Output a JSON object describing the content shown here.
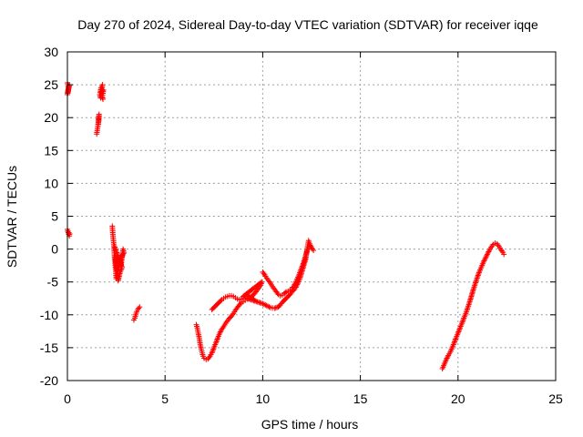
{
  "chart_data": {
    "type": "scatter",
    "title": "Day 270 of 2024, Sidereal Day-to-day VTEC variation (SDTVAR) for receiver iqqe",
    "xlabel": "GPS time / hours",
    "ylabel": "SDTVAR / TECUs",
    "xlim": [
      0,
      25
    ],
    "ylim": [
      -20,
      30
    ],
    "xticks": [
      0,
      5,
      10,
      15,
      20,
      25
    ],
    "yticks": [
      -20,
      -15,
      -10,
      -5,
      0,
      5,
      10,
      15,
      20,
      25,
      30
    ],
    "grid": true,
    "marker": "+",
    "color": "#ff0000",
    "series": [
      {
        "name": "SDTVAR",
        "segments": [
          [
            [
              0.0,
              25.3
            ],
            [
              0.05,
              24.5
            ],
            [
              0.02,
              23.8
            ],
            [
              0.1,
              25.0
            ],
            [
              0.0,
              23.5
            ],
            [
              0.08,
              24.8
            ]
          ],
          [
            [
              0.0,
              3.0
            ],
            [
              0.05,
              2.5
            ],
            [
              0.1,
              2.0
            ],
            [
              0.02,
              2.7
            ],
            [
              0.12,
              2.3
            ]
          ],
          [
            [
              1.5,
              17.5
            ],
            [
              1.55,
              18.5
            ],
            [
              1.6,
              19.5
            ],
            [
              1.62,
              20.5
            ],
            [
              1.58,
              19.0
            ]
          ],
          [
            [
              1.65,
              23.5
            ],
            [
              1.7,
              23.0
            ],
            [
              1.75,
              24.0
            ],
            [
              1.8,
              25.0
            ],
            [
              1.72,
              24.5
            ],
            [
              1.68,
              23.8
            ],
            [
              1.85,
              24.2
            ],
            [
              1.78,
              23.2
            ],
            [
              1.82,
              22.8
            ]
          ],
          [
            [
              2.3,
              3.5
            ],
            [
              2.32,
              2.5
            ],
            [
              2.35,
              1.5
            ],
            [
              2.38,
              0.5
            ],
            [
              2.4,
              -0.5
            ],
            [
              2.42,
              -1.5
            ],
            [
              2.45,
              -2.5
            ],
            [
              2.48,
              -3.5
            ],
            [
              2.5,
              -4.5
            ],
            [
              2.55,
              -4.0
            ],
            [
              2.6,
              -3.0
            ],
            [
              2.65,
              -2.0
            ],
            [
              2.7,
              -1.5
            ],
            [
              2.75,
              -2.5
            ],
            [
              2.8,
              -1.0
            ],
            [
              2.85,
              0.0
            ],
            [
              2.9,
              -0.5
            ],
            [
              2.5,
              -3.0
            ],
            [
              2.45,
              -1.0
            ],
            [
              2.6,
              -4.8
            ],
            [
              2.7,
              -3.5
            ],
            [
              2.8,
              -2.8
            ],
            [
              2.4,
              0.5
            ]
          ],
          [
            [
              3.4,
              -10.8
            ],
            [
              3.45,
              -10.5
            ],
            [
              3.5,
              -10.0
            ],
            [
              3.55,
              -9.5
            ],
            [
              3.6,
              -9.2
            ],
            [
              3.65,
              -9.0
            ],
            [
              3.7,
              -8.8
            ]
          ],
          [
            [
              6.6,
              -11.5
            ],
            [
              6.65,
              -12.0
            ],
            [
              6.7,
              -12.8
            ],
            [
              6.75,
              -13.5
            ],
            [
              6.8,
              -14.5
            ],
            [
              6.85,
              -15.2
            ],
            [
              6.9,
              -15.8
            ],
            [
              6.95,
              -16.3
            ],
            [
              7.0,
              -16.6
            ],
            [
              7.1,
              -16.8
            ],
            [
              7.2,
              -16.7
            ],
            [
              7.3,
              -16.3
            ],
            [
              7.4,
              -15.8
            ],
            [
              7.5,
              -15.0
            ],
            [
              7.6,
              -14.3
            ],
            [
              7.7,
              -13.5
            ],
            [
              7.8,
              -12.8
            ],
            [
              7.9,
              -12.2
            ],
            [
              8.0,
              -11.8
            ],
            [
              8.1,
              -11.3
            ],
            [
              8.2,
              -10.9
            ],
            [
              8.3,
              -10.5
            ],
            [
              8.4,
              -10.2
            ],
            [
              8.5,
              -9.8
            ],
            [
              8.6,
              -9.3
            ],
            [
              8.7,
              -8.9
            ],
            [
              8.8,
              -8.5
            ],
            [
              8.9,
              -8.2
            ],
            [
              9.0,
              -8.0
            ],
            [
              9.1,
              -7.8
            ],
            [
              9.2,
              -7.6
            ],
            [
              9.3,
              -7.5
            ],
            [
              9.4,
              -7.3
            ],
            [
              9.5,
              -7.0
            ],
            [
              9.6,
              -6.7
            ],
            [
              9.7,
              -6.3
            ],
            [
              9.8,
              -5.9
            ],
            [
              9.9,
              -5.5
            ],
            [
              9.95,
              -5.0
            ],
            [
              9.0,
              -7.2
            ],
            [
              9.2,
              -7.0
            ],
            [
              9.4,
              -7.4
            ],
            [
              9.6,
              -7.8
            ]
          ],
          [
            [
              7.4,
              -9.2
            ],
            [
              7.5,
              -8.9
            ],
            [
              7.6,
              -8.6
            ],
            [
              7.7,
              -8.3
            ],
            [
              7.8,
              -8.0
            ],
            [
              7.9,
              -7.7
            ],
            [
              8.0,
              -7.5
            ],
            [
              8.1,
              -7.3
            ],
            [
              8.2,
              -7.2
            ],
            [
              8.3,
              -7.1
            ],
            [
              8.4,
              -7.1
            ],
            [
              8.5,
              -7.2
            ],
            [
              8.6,
              -7.4
            ],
            [
              8.7,
              -7.6
            ],
            [
              8.8,
              -7.7
            ],
            [
              8.9,
              -7.6
            ],
            [
              9.0,
              -7.4
            ],
            [
              9.2,
              -7.5
            ],
            [
              9.4,
              -7.7
            ],
            [
              9.6,
              -7.9
            ],
            [
              9.8,
              -8.1
            ],
            [
              10.0,
              -8.3
            ],
            [
              10.2,
              -8.6
            ],
            [
              10.4,
              -8.9
            ],
            [
              10.6,
              -9.0
            ],
            [
              10.8,
              -8.8
            ],
            [
              10.9,
              -8.5
            ],
            [
              11.0,
              -8.1
            ],
            [
              11.1,
              -7.8
            ],
            [
              11.2,
              -7.5
            ],
            [
              11.3,
              -7.2
            ],
            [
              11.4,
              -6.9
            ],
            [
              11.5,
              -6.5
            ],
            [
              11.6,
              -6.2
            ],
            [
              11.7,
              -5.8
            ],
            [
              11.8,
              -5.2
            ],
            [
              11.9,
              -4.5
            ],
            [
              12.0,
              -3.5
            ],
            [
              12.1,
              -2.5
            ],
            [
              12.2,
              -1.5
            ],
            [
              12.25,
              -0.5
            ],
            [
              12.3,
              0.5
            ],
            [
              12.35,
              1.3
            ],
            [
              12.4,
              0.8
            ],
            [
              12.5,
              0.2
            ],
            [
              12.6,
              -0.2
            ]
          ],
          [
            [
              10.0,
              -3.5
            ],
            [
              10.1,
              -3.9
            ],
            [
              10.2,
              -4.4
            ],
            [
              10.3,
              -4.8
            ],
            [
              10.4,
              -5.2
            ],
            [
              10.5,
              -5.7
            ],
            [
              10.6,
              -6.1
            ],
            [
              10.7,
              -6.5
            ],
            [
              10.8,
              -6.9
            ],
            [
              10.9,
              -7.1
            ],
            [
              11.0,
              -7.0
            ],
            [
              11.1,
              -6.8
            ],
            [
              11.2,
              -6.5
            ],
            [
              11.3,
              -6.4
            ],
            [
              11.4,
              -6.2
            ],
            [
              11.5,
              -6.0
            ],
            [
              11.6,
              -5.6
            ],
            [
              11.7,
              -5.0
            ],
            [
              11.8,
              -4.3
            ],
            [
              11.9,
              -3.6
            ],
            [
              12.0,
              -2.8
            ],
            [
              12.1,
              -2.0
            ],
            [
              12.2,
              -1.0
            ],
            [
              12.3,
              0.0
            ],
            [
              12.4,
              0.5
            ]
          ],
          [
            [
              19.2,
              -18.2
            ],
            [
              19.3,
              -17.5
            ],
            [
              19.4,
              -16.8
            ],
            [
              19.5,
              -16.2
            ],
            [
              19.6,
              -15.7
            ],
            [
              19.7,
              -15.0
            ],
            [
              19.8,
              -14.3
            ],
            [
              19.9,
              -13.5
            ],
            [
              20.0,
              -12.8
            ],
            [
              20.1,
              -12.0
            ],
            [
              20.2,
              -11.3
            ],
            [
              20.3,
              -10.5
            ],
            [
              20.4,
              -9.8
            ],
            [
              20.5,
              -8.9
            ],
            [
              20.6,
              -8.0
            ],
            [
              20.7,
              -7.0
            ],
            [
              20.8,
              -6.0
            ],
            [
              20.9,
              -5.1
            ],
            [
              21.0,
              -4.2
            ],
            [
              21.1,
              -3.4
            ],
            [
              21.2,
              -2.7
            ],
            [
              21.3,
              -2.0
            ],
            [
              21.4,
              -1.4
            ],
            [
              21.5,
              -0.8
            ],
            [
              21.6,
              -0.2
            ],
            [
              21.7,
              0.3
            ],
            [
              21.8,
              0.7
            ],
            [
              21.9,
              0.9
            ],
            [
              22.0,
              0.8
            ],
            [
              22.1,
              0.4
            ],
            [
              22.2,
              -0.1
            ],
            [
              22.3,
              -0.5
            ],
            [
              22.35,
              -0.8
            ]
          ]
        ]
      }
    ]
  }
}
